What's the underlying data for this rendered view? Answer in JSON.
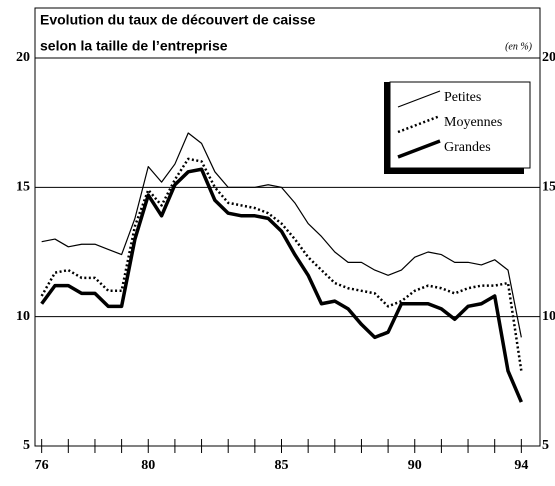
{
  "chart_data": {
    "type": "line",
    "title": "Evolution du taux de découvert de caisse",
    "subtitle": "selon la taille de l’entreprise",
    "unit_note": "(en %)",
    "x": [
      76,
      76.5,
      77,
      77.5,
      78,
      78.5,
      79,
      79.5,
      80,
      80.5,
      81,
      81.5,
      82,
      82.5,
      83,
      83.5,
      84,
      84.5,
      85,
      85.5,
      86,
      86.5,
      87,
      87.5,
      88,
      88.5,
      89,
      89.5,
      90,
      90.5,
      91,
      91.5,
      92,
      92.5,
      93,
      93.5,
      94
    ],
    "series": [
      {
        "name": "Petites",
        "color": "#000000",
        "style": "thin",
        "values": [
          12.9,
          13.0,
          12.7,
          12.8,
          12.8,
          12.6,
          12.4,
          13.8,
          15.8,
          15.2,
          15.9,
          17.1,
          16.7,
          15.6,
          15.0,
          15.0,
          15.0,
          15.1,
          15.0,
          14.4,
          13.6,
          13.1,
          12.5,
          12.1,
          12.1,
          11.8,
          11.6,
          11.8,
          12.3,
          12.5,
          12.4,
          12.1,
          12.1,
          12.0,
          12.2,
          11.8,
          9.2
        ]
      },
      {
        "name": "Moyennes",
        "color": "#000000",
        "style": "dotted",
        "values": [
          10.8,
          11.7,
          11.8,
          11.5,
          11.5,
          11.0,
          11.0,
          13.5,
          14.9,
          14.3,
          15.3,
          16.1,
          16.0,
          15.0,
          14.4,
          14.3,
          14.2,
          14.0,
          13.6,
          13.0,
          12.3,
          11.8,
          11.3,
          11.1,
          11.0,
          10.9,
          10.4,
          10.6,
          11.0,
          11.2,
          11.1,
          10.9,
          11.1,
          11.2,
          11.2,
          11.3,
          7.9
        ]
      },
      {
        "name": "Grandes",
        "color": "#000000",
        "style": "thick",
        "values": [
          10.5,
          11.2,
          11.2,
          10.9,
          10.9,
          10.4,
          10.4,
          13.0,
          14.7,
          13.9,
          15.1,
          15.6,
          15.7,
          14.5,
          14.0,
          13.9,
          13.9,
          13.8,
          13.3,
          12.4,
          11.6,
          10.5,
          10.6,
          10.3,
          9.7,
          9.2,
          9.4,
          10.5,
          10.5,
          10.5,
          10.3,
          9.9,
          10.4,
          10.5,
          10.8,
          7.9,
          6.7
        ]
      }
    ],
    "xlim": [
      75.75,
      94.7
    ],
    "xticks": [
      76,
      80,
      85,
      90,
      94
    ],
    "x_minor_ticks": [
      76,
      77,
      78,
      79,
      80,
      81,
      82,
      83,
      84,
      85,
      86,
      87,
      88,
      89,
      90,
      91,
      92,
      93,
      94
    ],
    "ylim": [
      5,
      20
    ],
    "yticks": [
      5,
      10,
      15,
      20
    ],
    "grid": true,
    "legend": "top-right"
  }
}
